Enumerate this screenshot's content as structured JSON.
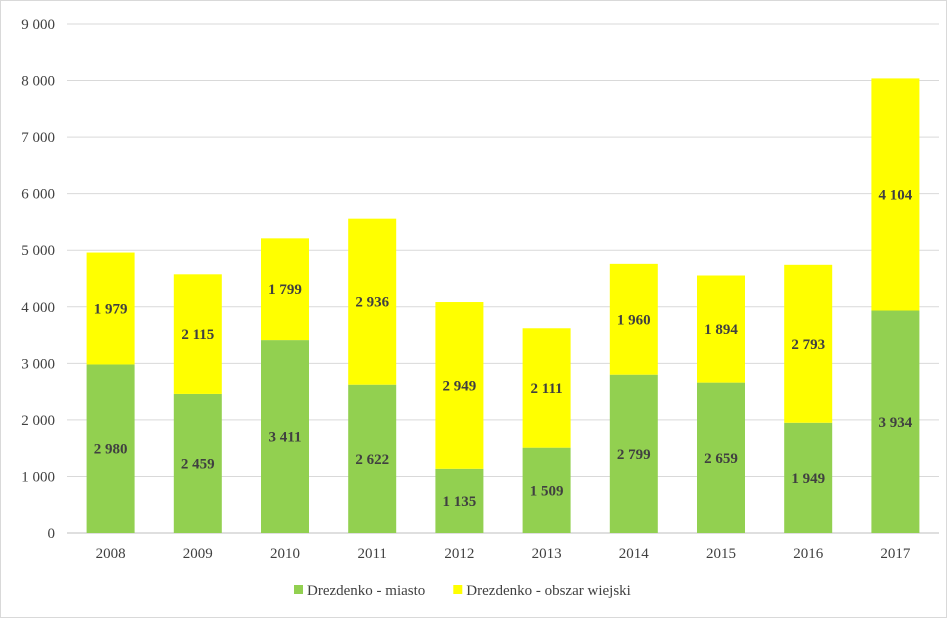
{
  "chart_data": {
    "type": "bar",
    "stacked": true,
    "categories": [
      "2008",
      "2009",
      "2010",
      "2011",
      "2012",
      "2013",
      "2014",
      "2015",
      "2016",
      "2017"
    ],
    "series": [
      {
        "name": "Drezdenko - miasto",
        "color": "#92d050",
        "values": [
          2980,
          2459,
          3411,
          2622,
          1135,
          1509,
          2799,
          2659,
          1949,
          3934
        ],
        "labels": [
          "2 980",
          "2 459",
          "3 411",
          "2 622",
          "1 135",
          "1 509",
          "2 799",
          "2 659",
          "1 949",
          "3 934"
        ]
      },
      {
        "name": "Drezdenko - obszar wiejski",
        "color": "#ffff00",
        "values": [
          1979,
          2115,
          1799,
          2936,
          2949,
          2111,
          1960,
          1894,
          2793,
          4104
        ],
        "labels": [
          "1 979",
          "2 115",
          "1 799",
          "2 936",
          "2 949",
          "2 111",
          "1 960",
          "1 894",
          "2 793",
          "4 104"
        ]
      }
    ],
    "ylim": [
      0,
      9000
    ],
    "yticks": [
      0,
      1000,
      2000,
      3000,
      4000,
      5000,
      6000,
      7000,
      8000,
      9000
    ],
    "ytick_labels": [
      "0",
      "1 000",
      "2 000",
      "3 000",
      "4 000",
      "5 000",
      "6 000",
      "7 000",
      "8 000",
      "9 000"
    ],
    "grid": true,
    "grid_color": "#d9d9d9",
    "legend_position": "bottom",
    "title": "",
    "xlabel": "",
    "ylabel": ""
  }
}
